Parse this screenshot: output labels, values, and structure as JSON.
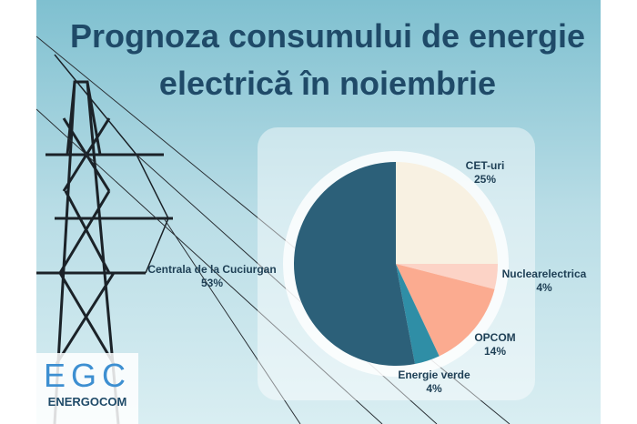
{
  "chart_data": {
    "type": "pie",
    "title": "Prognoza consumului de energie electrică în noiembrie",
    "categories": [
      "CET-uri",
      "Nuclearelectrica",
      "OPCOM",
      "Energie verde",
      "Centrala de la Cuciurgan"
    ],
    "values": [
      25,
      4,
      14,
      4,
      53
    ],
    "value_labels": [
      "25%",
      "4%",
      "14%",
      "4%",
      "53%"
    ],
    "colors": [
      "#f8f1e2",
      "#fcd3c6",
      "#fbab90",
      "#2f8ea6",
      "#2c6079"
    ]
  },
  "logo": {
    "mark": "EGC",
    "name": "ENERGOCOM"
  }
}
